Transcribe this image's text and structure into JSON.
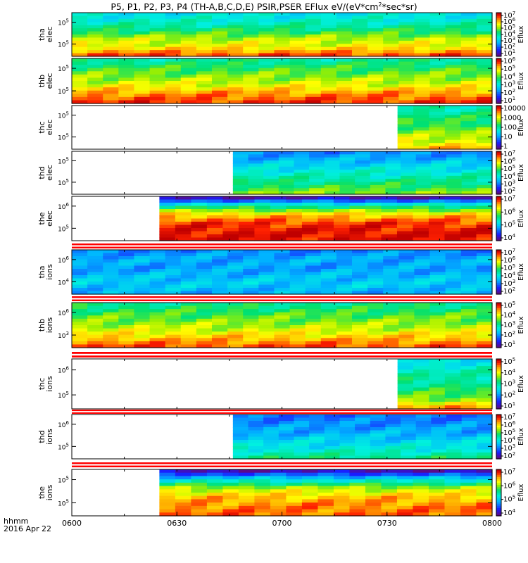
{
  "title": {
    "pre": "P5, P1, P2, P3, P4 (TH-A,B,C,D,E) PSIR,PSER EFlux eV/(eV*cm",
    "sup": "2",
    "post": "*sec*sr)"
  },
  "footer": {
    "line1": "hhmm",
    "line2": "2016 Apr 22"
  },
  "chart_data": {
    "type": "heatmap",
    "x_tick_labels": [
      "0600",
      "0630",
      "0700",
      "0730",
      "0800"
    ],
    "x_range": [
      "06:00",
      "08:00"
    ],
    "colorbar_title": "Eflux",
    "colorscale": "rainbow (purple-blue-cyan-green-yellow-red)",
    "panels": [
      {
        "id": "tha-elec",
        "probe": "tha",
        "species": "elec",
        "yticks": [
          "10^5",
          "10^5"
        ],
        "cb_ticks": [
          "10^7",
          "10^6",
          "10^5",
          "10^4",
          "10^3",
          "10^2",
          "10^1"
        ],
        "data_start": "06:00",
        "data_end": "08:00",
        "profile": [
          0.4,
          0.45,
          0.55,
          0.68,
          0.74,
          0.9
        ]
      },
      {
        "id": "thb-elec",
        "probe": "thb",
        "species": "elec",
        "yticks": [
          "10^5",
          "10^5"
        ],
        "cb_ticks": [
          "10^6",
          "10^5",
          "10^4",
          "10^3",
          "10^2",
          "10^1"
        ],
        "data_start": "06:00",
        "data_end": "08:00",
        "profile": [
          0.5,
          0.58,
          0.65,
          0.72,
          0.85,
          0.92
        ]
      },
      {
        "id": "thc-elec",
        "probe": "thc",
        "species": "elec",
        "yticks": [
          "10^5",
          "10^5"
        ],
        "cb_ticks": [
          "10000",
          "1000",
          "100",
          "10",
          "1"
        ],
        "data_start": "07:33",
        "data_end": "08:00",
        "profile": [
          0.48,
          0.52,
          0.58,
          0.64,
          0.7,
          0.8
        ]
      },
      {
        "id": "thd-elec",
        "probe": "thd",
        "species": "elec",
        "yticks": [
          "10^5",
          "10^5"
        ],
        "cb_ticks": [
          "10^7",
          "10^6",
          "10^5",
          "10^4",
          "10^3",
          "10^2"
        ],
        "data_start": "06:46",
        "data_end": "08:00",
        "profile": [
          0.25,
          0.32,
          0.4,
          0.47,
          0.55,
          0.64
        ]
      },
      {
        "id": "the-elec",
        "probe": "the",
        "species": "elec",
        "yticks": [
          "10^6",
          "10^5"
        ],
        "cb_ticks": [
          "10^7",
          "10^6",
          "10^5",
          "10^4"
        ],
        "data_start": "06:25",
        "data_end": "08:00",
        "profile": [
          0.05,
          0.5,
          0.78,
          0.92,
          0.96,
          0.97
        ]
      },
      {
        "id": "tha-ions",
        "probe": "tha",
        "species": "ions",
        "yticks": [
          "10^6",
          "10^4"
        ],
        "cb_ticks": [
          "10^7",
          "10^6",
          "10^5",
          "10^4",
          "10^3",
          "10^2"
        ],
        "data_start": "06:00",
        "data_end": "08:00",
        "profile": [
          0.25,
          0.3,
          0.28,
          0.32,
          0.35,
          0.3
        ]
      },
      {
        "id": "thb-ions",
        "probe": "thb",
        "species": "ions",
        "yticks": [
          "10^6",
          "10^3"
        ],
        "cb_ticks": [
          "10^5",
          "10^4",
          "10^3",
          "10^2",
          "10^1"
        ],
        "data_start": "06:00",
        "data_end": "08:00",
        "profile": [
          0.52,
          0.58,
          0.64,
          0.7,
          0.8,
          0.9
        ]
      },
      {
        "id": "thc-ions",
        "probe": "thc",
        "species": "ions",
        "yticks": [
          "10^6",
          "10^5"
        ],
        "cb_ticks": [
          "10^5",
          "10^4",
          "10^3",
          "10^2",
          "10^1"
        ],
        "data_start": "07:33",
        "data_end": "08:00",
        "profile": [
          0.4,
          0.45,
          0.5,
          0.55,
          0.62,
          0.82
        ]
      },
      {
        "id": "thd-ions",
        "probe": "thd",
        "species": "ions",
        "yticks": [
          "10^6",
          "10^5"
        ],
        "cb_ticks": [
          "10^7",
          "10^6",
          "10^5",
          "10^4",
          "10^3",
          "10^2"
        ],
        "data_start": "06:46",
        "data_end": "08:00",
        "profile": [
          0.22,
          0.26,
          0.3,
          0.36,
          0.42,
          0.52
        ]
      },
      {
        "id": "the-ions",
        "probe": "the",
        "species": "ions",
        "yticks": [
          "10^5",
          "10^5"
        ],
        "cb_ticks": [
          "10^7",
          "10^6",
          "10^5",
          "10^4"
        ],
        "data_start": "06:25",
        "data_end": "08:00",
        "profile": [
          0.05,
          0.4,
          0.68,
          0.8,
          0.86,
          0.88
        ]
      }
    ]
  }
}
